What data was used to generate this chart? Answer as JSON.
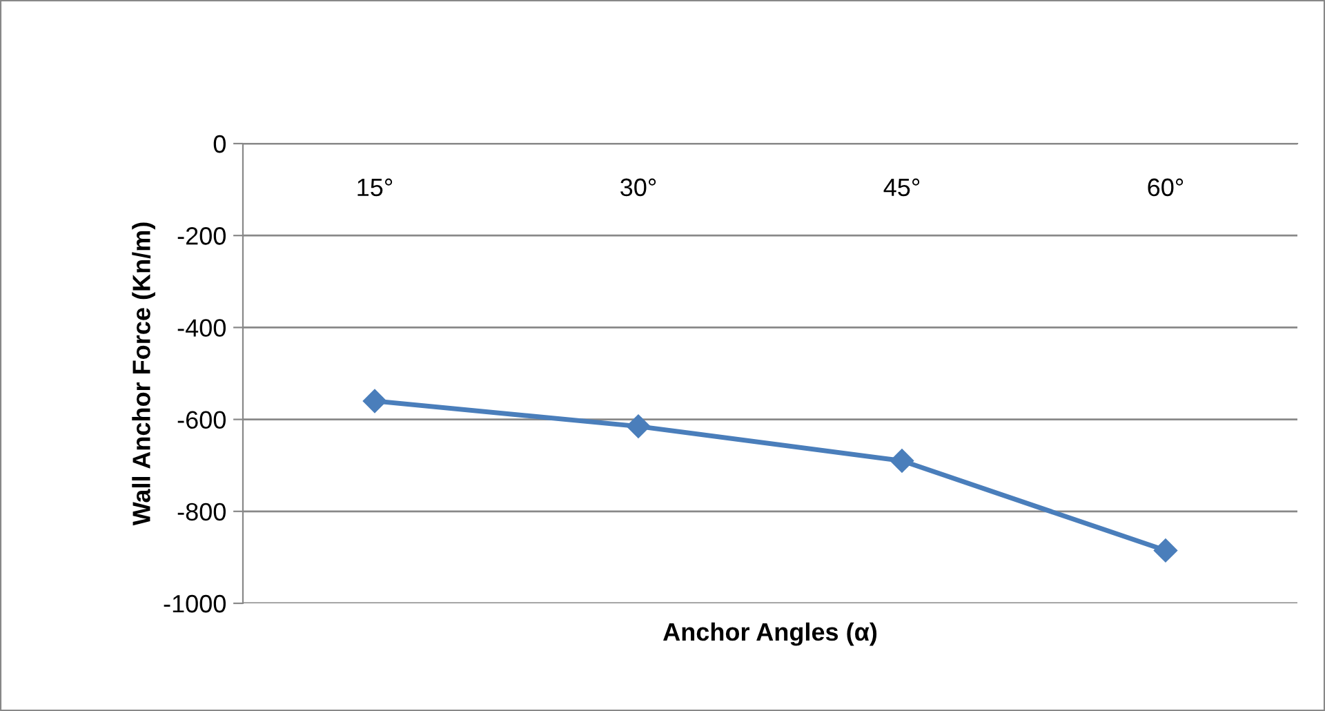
{
  "chart_data": {
    "type": "line",
    "xlabel": "Anchor Angles (α)",
    "ylabel": "Wall Anchor Force (Kn/m)",
    "categories": [
      "15°",
      "30°",
      "45°",
      "60°"
    ],
    "series": [
      {
        "color": "#4a7ebb",
        "values": [
          -560,
          -615,
          -690,
          -885
        ]
      }
    ],
    "ylim": [
      -1000,
      0
    ],
    "yticks": [
      -1000,
      -800,
      -600,
      -400,
      -200,
      0
    ],
    "grid": "y",
    "marker": "diamond",
    "line_style": "solid"
  }
}
